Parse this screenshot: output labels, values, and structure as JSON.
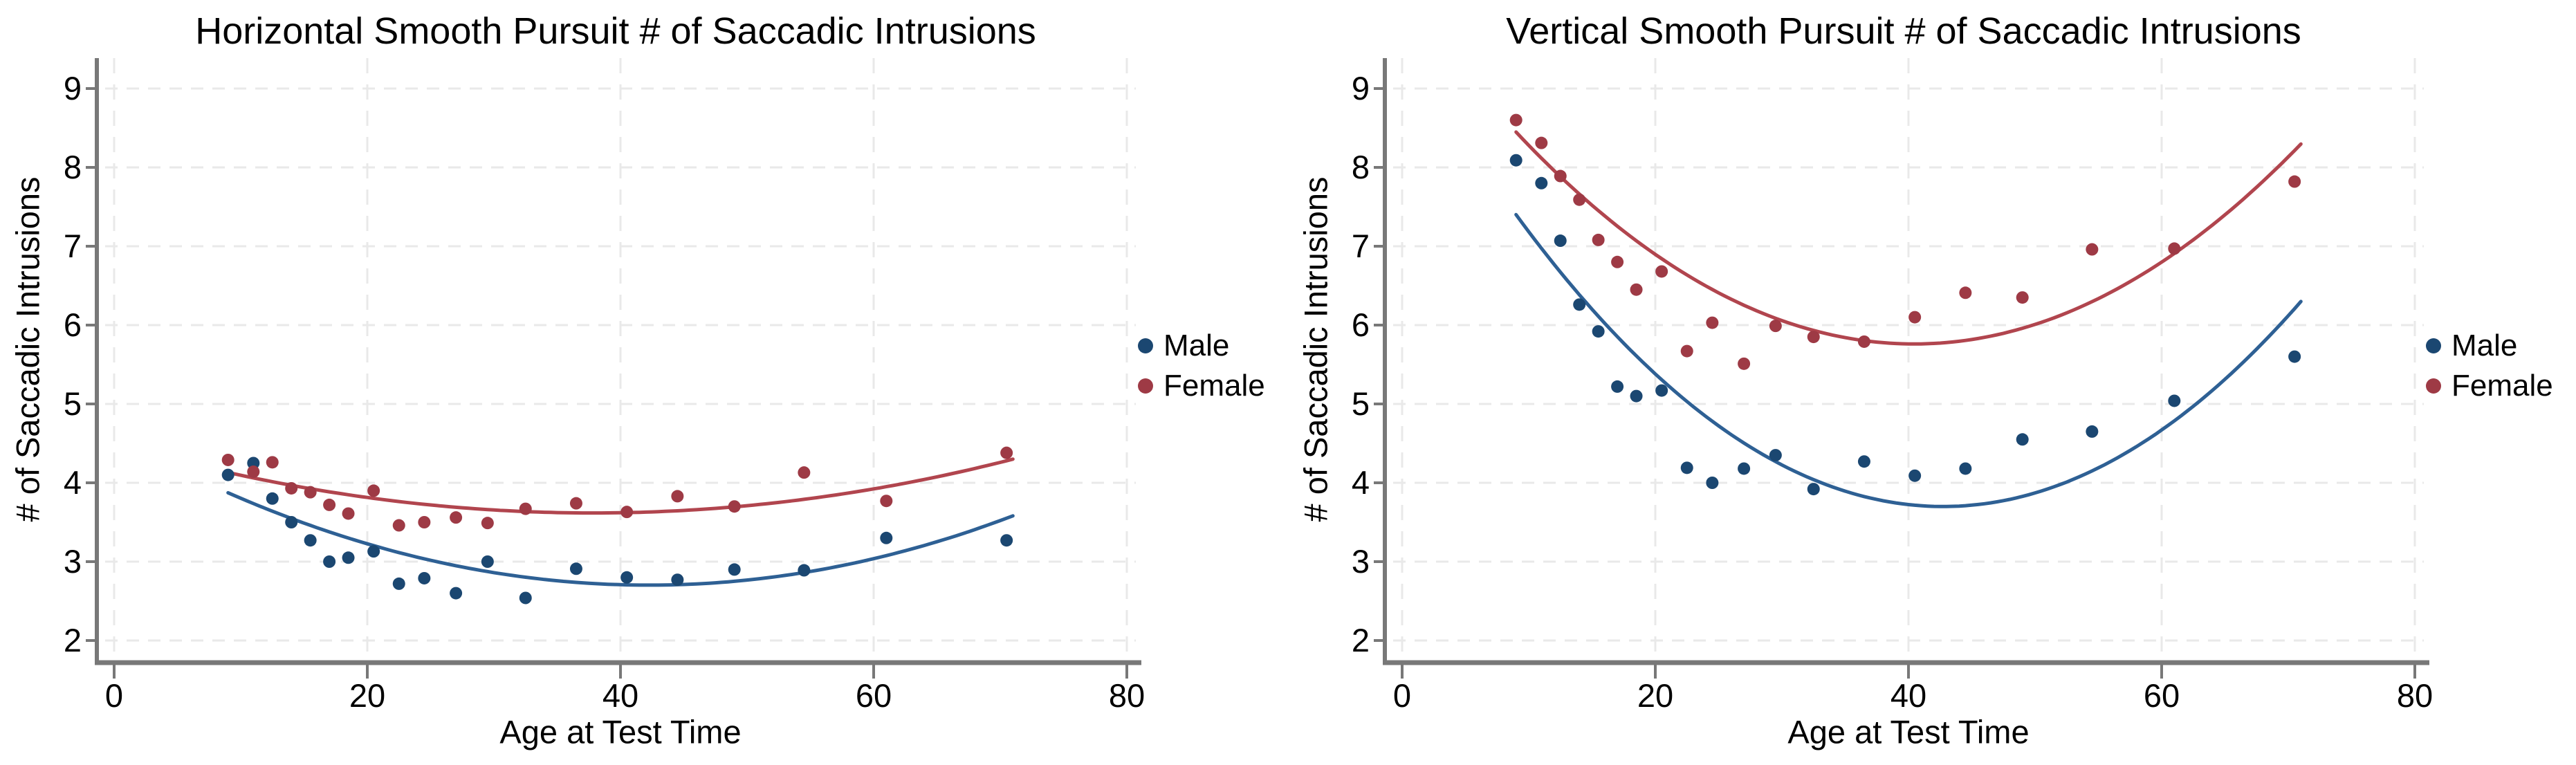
{
  "palette": {
    "background": "#ffffff",
    "text": "#000000",
    "male_point": "#1b4771",
    "male_line": "#2e6094",
    "female_point": "#9e3a45",
    "female_line": "#b1454e",
    "grid": "#e9e9e9",
    "axis": "#787878"
  },
  "chart_data": [
    {
      "type": "scatter",
      "title": "Horizontal Smooth Pursuit # of Saccadic Intrusions",
      "xlabel": "Age at Test Time",
      "ylabel": "# of Saccadic Intrusions",
      "x_ticks": [
        0,
        20,
        40,
        60,
        80
      ],
      "y_ticks": [
        2,
        3,
        4,
        5,
        6,
        7,
        8,
        9
      ],
      "xlim": [
        0,
        80
      ],
      "ylim": [
        2,
        9
      ],
      "grid": true,
      "legend_position": "right-outside",
      "legend": [
        {
          "label": "Male",
          "series": "Male"
        },
        {
          "label": "Female",
          "series": "Female"
        }
      ],
      "series": [
        {
          "name": "Male",
          "color_key": "male",
          "x": [
            9,
            11,
            12.5,
            14,
            15.5,
            17,
            18.5,
            20.5,
            22.5,
            24.5,
            27,
            29.5,
            32.5,
            36.5,
            40.5,
            44.5,
            49,
            54.5,
            61,
            70.5
          ],
          "y": [
            4.1,
            4.25,
            3.8,
            3.5,
            3.27,
            3.0,
            3.05,
            3.13,
            2.72,
            2.79,
            2.6,
            3.0,
            2.54,
            2.91,
            2.8,
            2.77,
            2.9,
            2.89,
            3.3,
            3.27
          ],
          "fit_quad": [
            0.001061,
            -0.0896,
            4.594
          ],
          "fit_range": [
            9,
            71
          ]
        },
        {
          "name": "Female",
          "color_key": "female",
          "x": [
            9,
            11,
            12.5,
            14,
            15.5,
            17,
            18.5,
            20.5,
            22.5,
            24.5,
            27,
            29.5,
            32.5,
            36.5,
            40.5,
            44.5,
            49,
            54.5,
            61,
            70.5
          ],
          "y": [
            4.29,
            4.14,
            4.26,
            3.93,
            3.88,
            3.72,
            3.61,
            3.9,
            3.46,
            3.5,
            3.56,
            3.49,
            3.67,
            3.74,
            3.63,
            3.83,
            3.7,
            4.13,
            3.77,
            4.38
          ],
          "fit_quad": [
            0.000619,
            -0.0468,
            4.502
          ],
          "fit_range": [
            9,
            71
          ]
        }
      ]
    },
    {
      "type": "scatter",
      "title": "Vertical Smooth Pursuit # of Saccadic Intrusions",
      "xlabel": "Age at Test Time",
      "ylabel": "# of Saccadic Intrusions",
      "x_ticks": [
        0,
        20,
        40,
        60,
        80
      ],
      "y_ticks": [
        2,
        3,
        4,
        5,
        6,
        7,
        8,
        9
      ],
      "xlim": [
        0,
        80
      ],
      "ylim": [
        2,
        9
      ],
      "grid": true,
      "legend_position": "right-outside",
      "legend": [
        {
          "label": "Male",
          "series": "Male"
        },
        {
          "label": "Female",
          "series": "Female"
        }
      ],
      "series": [
        {
          "name": "Male",
          "color_key": "male",
          "x": [
            9,
            11,
            12.5,
            14,
            15.5,
            17,
            18.5,
            20.5,
            22.5,
            24.5,
            27,
            29.5,
            32.5,
            36.5,
            40.5,
            44.5,
            49,
            54.5,
            61,
            70.5
          ],
          "y": [
            8.09,
            7.8,
            7.07,
            6.26,
            5.92,
            5.22,
            5.1,
            5.17,
            4.19,
            4.0,
            4.18,
            4.35,
            3.92,
            4.27,
            4.09,
            4.18,
            4.55,
            4.65,
            5.04,
            5.6
          ],
          "fit_quad": [
            0.003253,
            -0.278,
            9.639
          ],
          "fit_range": [
            9,
            71
          ]
        },
        {
          "name": "Female",
          "color_key": "female",
          "x": [
            9,
            11,
            12.5,
            14,
            15.5,
            17,
            18.5,
            20.5,
            22.5,
            24.5,
            27,
            29.5,
            32.5,
            36.5,
            40.5,
            44.5,
            49,
            54.5,
            61,
            70.5
          ],
          "y": [
            8.6,
            8.31,
            7.89,
            7.59,
            7.08,
            6.8,
            6.45,
            6.68,
            5.67,
            6.03,
            5.51,
            5.99,
            5.85,
            5.79,
            6.1,
            6.41,
            6.35,
            6.96,
            6.97,
            7.82
          ],
          "fit_quad": [
            0.002717,
            -0.2198,
            10.206
          ],
          "fit_range": [
            9,
            71
          ]
        }
      ]
    }
  ]
}
